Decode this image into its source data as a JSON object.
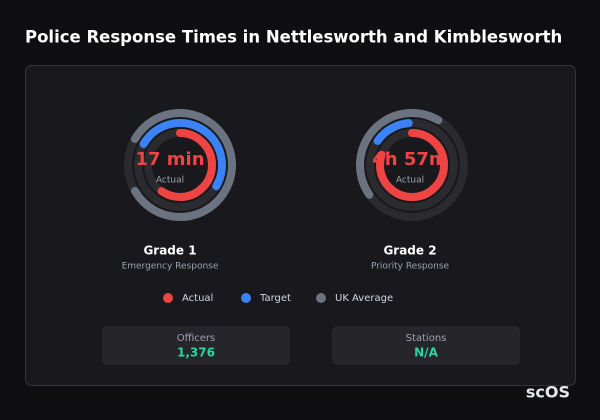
{
  "header": {
    "title": "Police Response Times in Nettlesworth and Kimblesworth"
  },
  "gauges": [
    {
      "value": "17 min",
      "value_caption": "Actual",
      "grade": "Grade 1",
      "subtitle": "Emergency Response"
    },
    {
      "value": "4h 57m",
      "value_caption": "Actual",
      "grade": "Grade 2",
      "subtitle": "Priority Response"
    }
  ],
  "legend": [
    "Actual",
    "Target",
    "UK Average"
  ],
  "stats": [
    {
      "label": "Officers",
      "value": "1,376"
    },
    {
      "label": "Stations",
      "value": "N/A"
    }
  ],
  "watermark": "scOS"
}
